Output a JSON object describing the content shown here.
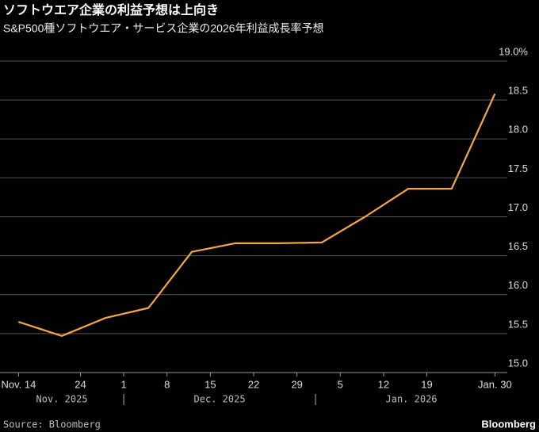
{
  "chart_data": {
    "type": "line",
    "title": "ソフトウエア企業の利益予想は上向き",
    "subtitle": "S&P500種ソフトウエア・サービス企業の2026年利益成長率予想",
    "x": [
      "2025-11-14",
      "2025-11-21",
      "2025-11-28",
      "2025-12-05",
      "2025-12-12",
      "2025-12-19",
      "2025-12-26",
      "2026-01-02",
      "2026-01-09",
      "2026-01-16",
      "2026-01-23",
      "2026-01-30"
    ],
    "series": [
      {
        "name": "2026年利益成長率予想",
        "color": "#f5a742",
        "values": [
          15.65,
          15.47,
          15.7,
          15.83,
          16.55,
          16.66,
          16.66,
          16.67,
          17.0,
          17.36,
          17.36,
          18.58
        ]
      }
    ],
    "xlim": [
      "2025-11-11",
      "2026-02-01"
    ],
    "xticks": [
      {
        "value": "2025-11-14",
        "label": "Nov. 14"
      },
      {
        "value": "2025-11-24",
        "label": "24"
      },
      {
        "value": "2025-12-01",
        "label": "1"
      },
      {
        "value": "2025-12-08",
        "label": "8"
      },
      {
        "value": "2025-12-15",
        "label": "15"
      },
      {
        "value": "2025-12-22",
        "label": "22"
      },
      {
        "value": "2025-12-29",
        "label": "29"
      },
      {
        "value": "2026-01-05",
        "label": "5"
      },
      {
        "value": "2026-01-12",
        "label": "12"
      },
      {
        "value": "2026-01-19",
        "label": "19"
      },
      {
        "value": "2026-01-30",
        "label": "Jan. 30"
      }
    ],
    "x_groups": [
      {
        "label": "Nov. 2025",
        "start": "2025-11-11",
        "end": "2025-12-01"
      },
      {
        "label": "Dec. 2025",
        "start": "2025-12-01",
        "end": "2026-01-01"
      },
      {
        "label": "Jan. 2026",
        "start": "2026-01-01",
        "end": "2026-02-01"
      }
    ],
    "ylim": [
      15,
      19
    ],
    "yticks": [
      {
        "value": 15,
        "label": "15.0"
      },
      {
        "value": 15.5,
        "label": "15.5"
      },
      {
        "value": 16,
        "label": "16.0"
      },
      {
        "value": 16.5,
        "label": "16.5"
      },
      {
        "value": 17,
        "label": "17.0"
      },
      {
        "value": 17.5,
        "label": "17.5"
      },
      {
        "value": 18,
        "label": "18.0"
      },
      {
        "value": 18.5,
        "label": "18.5"
      },
      {
        "value": 19,
        "label": "19.0%"
      }
    ],
    "grid": true,
    "source": "Source: Bloomberg",
    "brand": "Bloomberg"
  }
}
